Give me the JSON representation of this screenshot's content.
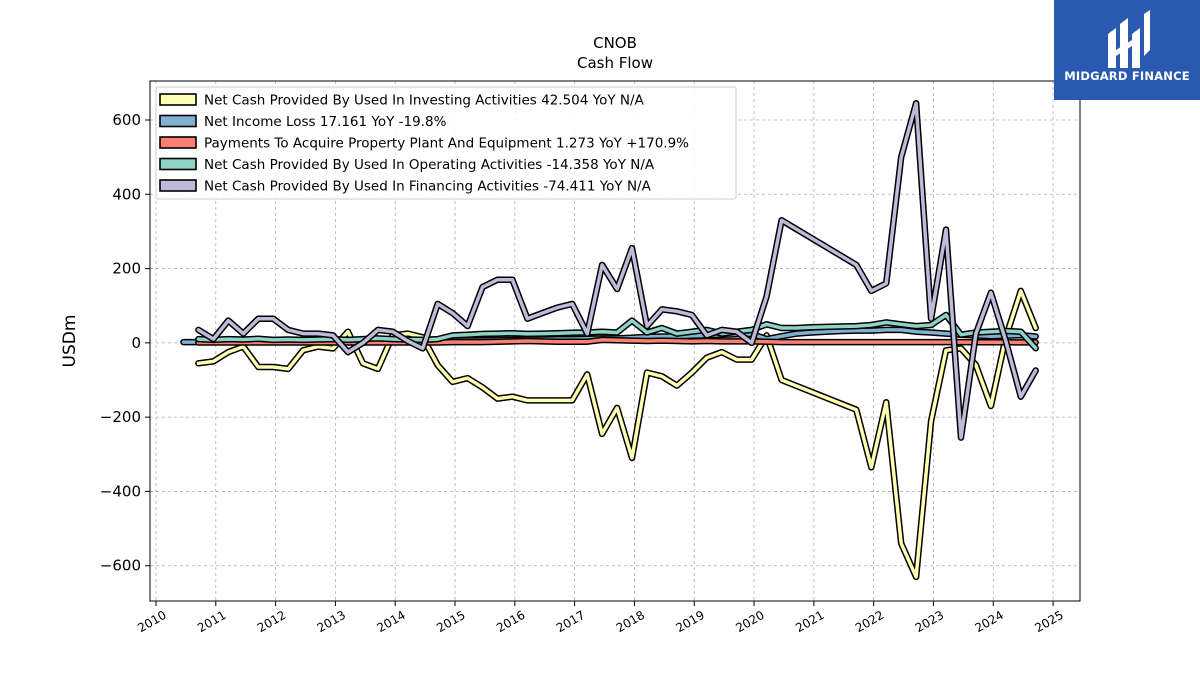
{
  "chart_data": {
    "type": "line",
    "title": "CNOB",
    "subtitle": "Cash Flow",
    "xlabel": "",
    "ylabel": "USDm",
    "xlim": [
      2009.9,
      2025.45
    ],
    "ylim": [
      -695,
      705
    ],
    "xticks": [
      2010,
      2011,
      2012,
      2013,
      2014,
      2015,
      2016,
      2017,
      2018,
      2019,
      2020,
      2021,
      2022,
      2023,
      2024,
      2025
    ],
    "yticks": [
      -600,
      -400,
      -200,
      0,
      200,
      400,
      600
    ],
    "grid": true,
    "legend_position": "top-left",
    "series": [
      {
        "name": "Net Cash Provided By Used In Investing Activities  42.504 YoY N/A",
        "color": "#ffffb3",
        "x": [
          2010.71,
          2010.96,
          2011.21,
          2011.46,
          2011.71,
          2011.96,
          2012.21,
          2012.46,
          2012.71,
          2012.96,
          2013.21,
          2013.46,
          2013.71,
          2013.96,
          2014.21,
          2014.46,
          2014.71,
          2014.96,
          2015.21,
          2015.46,
          2015.71,
          2015.96,
          2016.21,
          2016.46,
          2016.71,
          2016.96,
          2017.21,
          2017.46,
          2017.71,
          2017.96,
          2018.21,
          2018.46,
          2018.71,
          2018.96,
          2019.21,
          2019.46,
          2019.71,
          2019.96,
          2020.21,
          2020.46,
          2021.71,
          2021.96,
          2022.21,
          2022.46,
          2022.71,
          2022.96,
          2023.21,
          2023.46,
          2023.71,
          2023.96,
          2024.21,
          2024.46,
          2024.71
        ],
        "values": [
          -55,
          -50,
          -25,
          -10,
          -65,
          -65,
          -70,
          -20,
          -10,
          -15,
          30,
          -55,
          -70,
          20,
          25,
          15,
          -60,
          -105,
          -95,
          -120,
          -150,
          -145,
          -155,
          -155,
          -155,
          -155,
          -85,
          -245,
          -175,
          -310,
          -80,
          -90,
          -115,
          -80,
          -40,
          -25,
          -45,
          -45,
          20,
          -100,
          -180,
          -335,
          -160,
          -540,
          -630,
          -210,
          -20,
          -15,
          -60,
          -170,
          15,
          140,
          40
        ]
      },
      {
        "name": "Net Income Loss  17.161 YoY -19.8%",
        "color": "#80b1d3",
        "x": [
          2010.46,
          2010.71,
          2010.96,
          2011.21,
          2011.46,
          2011.71,
          2011.96,
          2012.21,
          2012.46,
          2012.71,
          2012.96,
          2013.21,
          2013.46,
          2013.71,
          2013.96,
          2014.21,
          2014.46,
          2014.71,
          2014.96,
          2015.21,
          2015.46,
          2015.71,
          2015.96,
          2016.21,
          2016.46,
          2016.71,
          2016.96,
          2017.21,
          2017.46,
          2017.71,
          2017.96,
          2018.21,
          2018.46,
          2018.71,
          2018.96,
          2019.21,
          2019.46,
          2019.71,
          2019.96,
          2020.21,
          2020.46,
          2020.71,
          2020.96,
          2021.21,
          2021.46,
          2021.71,
          2021.96,
          2022.21,
          2022.46,
          2022.71,
          2022.96,
          2023.21,
          2023.46,
          2023.71,
          2023.96,
          2024.21,
          2024.46,
          2024.71
        ],
        "values": [
          2,
          2,
          2,
          3,
          3,
          3,
          3,
          4,
          4,
          4,
          4,
          5,
          5,
          5,
          5,
          6,
          6,
          6,
          6,
          7,
          7,
          8,
          8,
          9,
          9,
          10,
          10,
          11,
          12,
          12,
          14,
          16,
          17,
          18,
          19,
          20,
          22,
          23,
          24,
          10,
          18,
          25,
          28,
          30,
          32,
          33,
          33,
          35,
          35,
          30,
          28,
          25,
          22,
          20,
          18,
          19,
          21,
          17
        ]
      },
      {
        "name": "Payments To Acquire Property Plant And Equipment  1.273 YoY +170.9%",
        "color": "#fb8072",
        "x": [
          2010.71,
          2010.96,
          2011.21,
          2011.46,
          2011.71,
          2011.96,
          2012.21,
          2012.46,
          2012.71,
          2012.96,
          2013.21,
          2013.46,
          2013.71,
          2013.96,
          2014.21,
          2014.46,
          2014.71,
          2014.96,
          2015.21,
          2015.46,
          2015.71,
          2015.96,
          2016.21,
          2016.46,
          2016.71,
          2016.96,
          2017.21,
          2017.46,
          2017.71,
          2017.96,
          2018.21,
          2018.46,
          2018.71,
          2018.96,
          2019.21,
          2019.46,
          2019.71,
          2019.96,
          2020.21,
          2020.46,
          2020.71,
          2020.96,
          2021.21,
          2021.46,
          2021.71,
          2021.96,
          2022.21,
          2022.46,
          2022.71,
          2022.96,
          2023.21,
          2023.46,
          2023.71,
          2023.96,
          2024.21,
          2024.46,
          2024.71
        ],
        "values": [
          1,
          1,
          1,
          1,
          1,
          1,
          1,
          1,
          1,
          1,
          1,
          1,
          1,
          1,
          1,
          1,
          1,
          2,
          2,
          2,
          3,
          4,
          5,
          4,
          3,
          3,
          3,
          8,
          7,
          6,
          5,
          6,
          5,
          4,
          5,
          4,
          4,
          4,
          3,
          2,
          2,
          2,
          2,
          2,
          2,
          2,
          2,
          2,
          2,
          2,
          2,
          2,
          1.5,
          1.5,
          1.5,
          1.3,
          1.273
        ]
      },
      {
        "name": "Net Cash Provided By Used In Operating Activities  -14.358 YoY N/A",
        "color": "#8dd3c7",
        "x": [
          2010.71,
          2010.96,
          2011.21,
          2011.46,
          2011.71,
          2011.96,
          2012.21,
          2012.46,
          2012.71,
          2012.96,
          2013.21,
          2013.46,
          2013.71,
          2013.96,
          2014.21,
          2014.46,
          2014.71,
          2014.96,
          2015.21,
          2015.46,
          2015.71,
          2015.96,
          2016.21,
          2016.46,
          2016.71,
          2016.96,
          2017.21,
          2017.46,
          2017.71,
          2017.96,
          2018.21,
          2018.46,
          2018.71,
          2018.96,
          2019.21,
          2019.46,
          2019.71,
          2019.96,
          2020.21,
          2020.46,
          2020.71,
          2020.96,
          2021.21,
          2021.46,
          2021.71,
          2021.96,
          2022.21,
          2022.46,
          2022.71,
          2022.96,
          2023.21,
          2023.46,
          2023.71,
          2023.96,
          2024.21,
          2024.46,
          2024.71
        ],
        "values": [
          10,
          8,
          10,
          9,
          11,
          8,
          9,
          8,
          9,
          10,
          8,
          10,
          12,
          10,
          9,
          8,
          10,
          20,
          22,
          24,
          25,
          26,
          24,
          25,
          26,
          27,
          28,
          30,
          28,
          60,
          28,
          40,
          25,
          30,
          35,
          25,
          30,
          35,
          50,
          40,
          40,
          42,
          43,
          44,
          45,
          48,
          55,
          50,
          45,
          48,
          75,
          22,
          28,
          30,
          32,
          30,
          -14.358
        ]
      },
      {
        "name": "Net Cash Provided By Used In Financing Activities  -74.411 YoY N/A",
        "color": "#bebada",
        "x": [
          2010.71,
          2010.96,
          2011.21,
          2011.46,
          2011.71,
          2011.96,
          2012.21,
          2012.46,
          2012.71,
          2012.96,
          2013.21,
          2013.46,
          2013.71,
          2013.96,
          2014.21,
          2014.46,
          2014.71,
          2014.96,
          2015.21,
          2015.46,
          2015.71,
          2015.96,
          2016.21,
          2016.46,
          2016.71,
          2016.96,
          2017.21,
          2017.46,
          2017.71,
          2017.96,
          2018.21,
          2018.46,
          2018.71,
          2018.96,
          2019.21,
          2019.46,
          2019.71,
          2019.96,
          2020.21,
          2020.46,
          2021.71,
          2021.96,
          2022.21,
          2022.46,
          2022.71,
          2022.96,
          2023.21,
          2023.46,
          2023.71,
          2023.96,
          2024.21,
          2024.46,
          2024.71
        ],
        "values": [
          35,
          10,
          60,
          25,
          65,
          65,
          35,
          25,
          25,
          20,
          -25,
          0,
          35,
          30,
          5,
          -15,
          105,
          80,
          45,
          150,
          170,
          170,
          65,
          80,
          95,
          105,
          25,
          210,
          145,
          255,
          45,
          90,
          85,
          75,
          20,
          35,
          30,
          0,
          125,
          330,
          210,
          140,
          160,
          500,
          645,
          65,
          305,
          -255,
          25,
          135,
          5,
          -145,
          -74.411
        ]
      }
    ]
  },
  "branding": {
    "logo_text": "MIDGARD FINANCE",
    "logo_color": "#2a5ab0"
  }
}
